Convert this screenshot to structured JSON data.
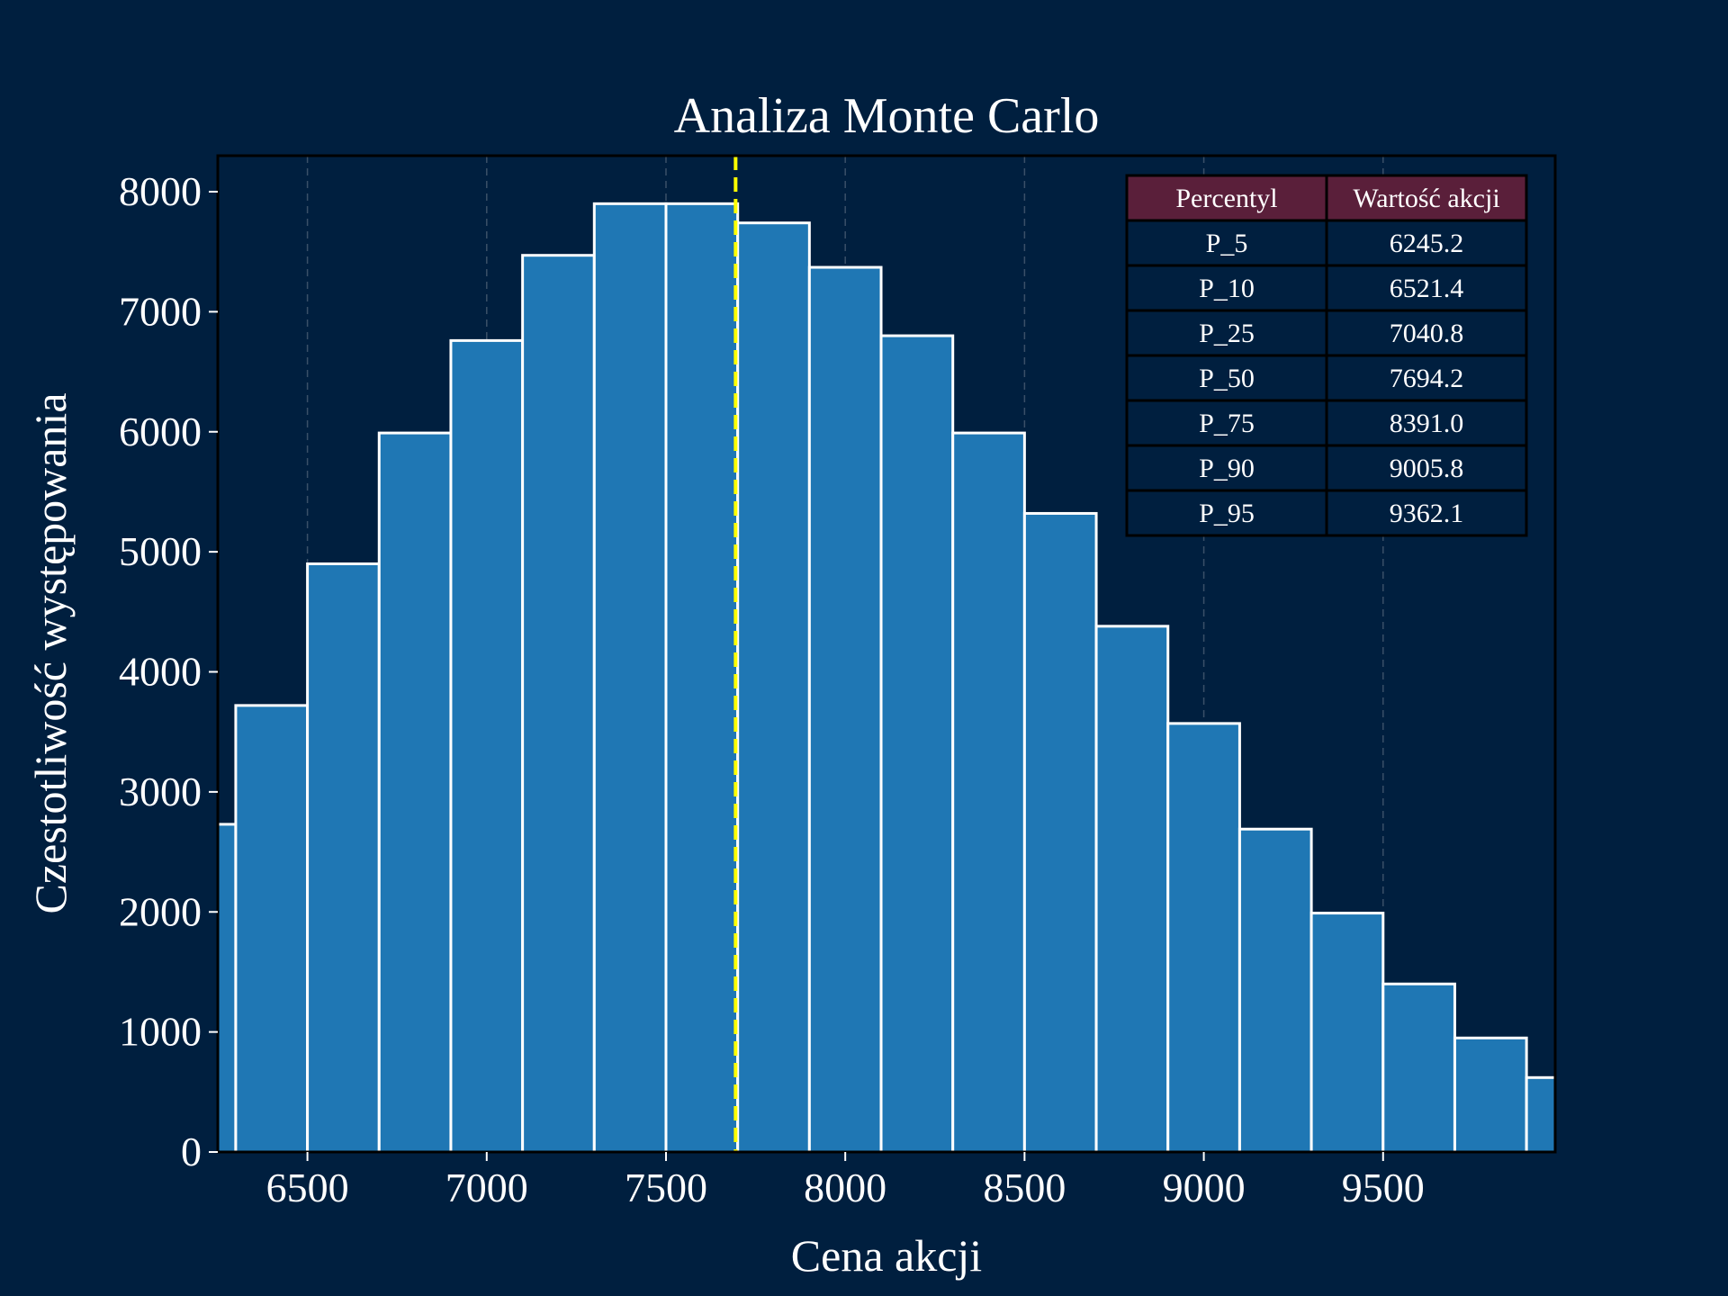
{
  "chart_data": {
    "type": "bar",
    "title": "Analiza Monte Carlo",
    "xlabel": "Cena akcji",
    "ylabel": "Czestotliwość występowania",
    "xlim": [
      6250,
      9980
    ],
    "ylim": [
      0,
      8300
    ],
    "xticks": [
      6500,
      7000,
      7500,
      8000,
      8500,
      9000,
      9500
    ],
    "yticks": [
      0,
      1000,
      2000,
      3000,
      4000,
      5000,
      6000,
      7000,
      8000
    ],
    "bin_edges": [
      6100,
      6300,
      6500,
      6700,
      6900,
      7100,
      7300,
      7500,
      7700,
      7900,
      8100,
      8300,
      8500,
      8700,
      8900,
      9100,
      9300,
      9500,
      9700,
      9900,
      10100
    ],
    "counts": [
      2730,
      3720,
      4900,
      5990,
      6760,
      7470,
      7900,
      7900,
      7740,
      7370,
      6800,
      5990,
      5320,
      4380,
      3570,
      2690,
      1990,
      1400,
      950,
      620
    ],
    "median_line": 7694.2,
    "grid": "vertical dashed",
    "colors": {
      "bar": "#1f77b4",
      "bar_edge": "#ffffff",
      "median": "#ffff00",
      "background": "#001f3f",
      "table_header": "#5a1f3a"
    },
    "table": {
      "position": "top-right",
      "headers": [
        "Percentyl",
        "Wartość akcji"
      ],
      "rows": [
        [
          "P_5",
          "6245.2"
        ],
        [
          "P_10",
          "6521.4"
        ],
        [
          "P_25",
          "7040.8"
        ],
        [
          "P_50",
          "7694.2"
        ],
        [
          "P_75",
          "8391.0"
        ],
        [
          "P_90",
          "9005.8"
        ],
        [
          "P_95",
          "9362.1"
        ]
      ]
    }
  }
}
